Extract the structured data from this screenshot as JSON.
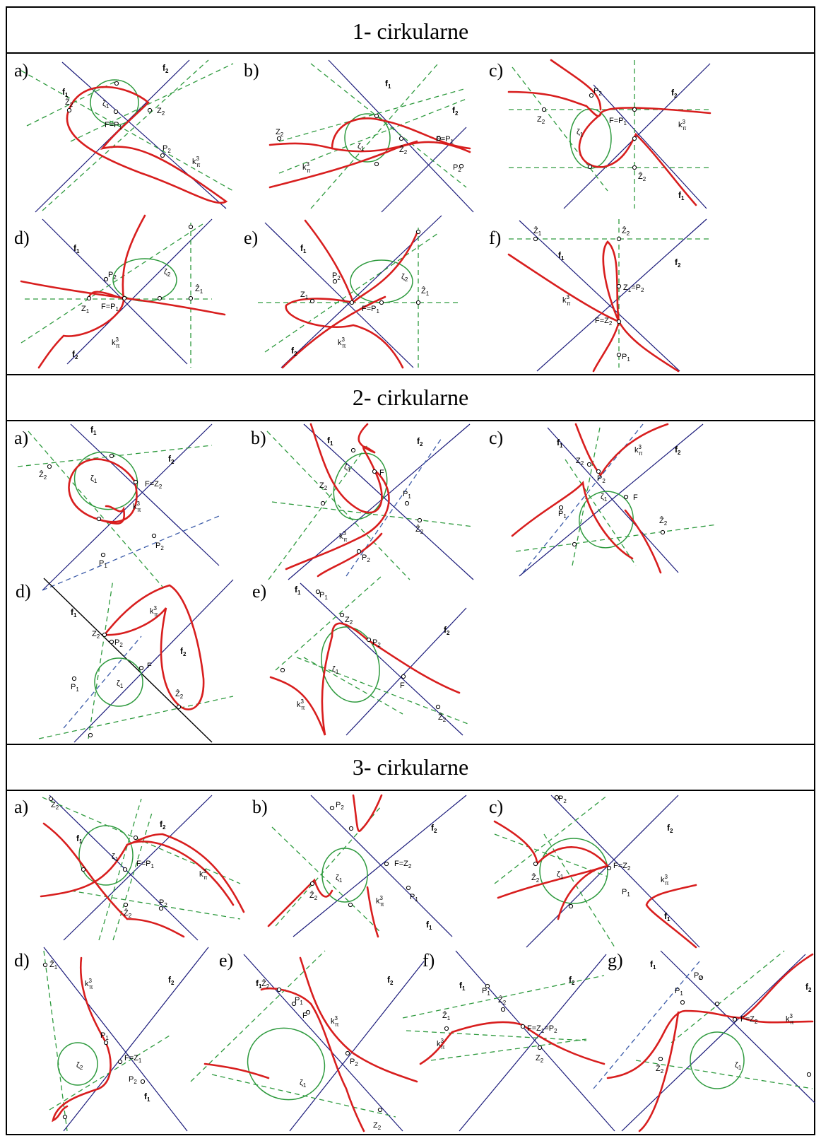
{
  "colors": {
    "frame": "#000000",
    "axis_line": "#1a1a7a",
    "construction": "#2e9a3e",
    "circle": "#2e9a3e",
    "curve": "#d81e1e",
    "blue_dashed": "#3a5aa8"
  },
  "sections": [
    {
      "title": "1- cirkularne",
      "panels": [
        {
          "letter": "a)",
          "labels": [
            "f1",
            "f2",
            "Ẑ2",
            "Z2",
            "ζ1",
            "F=P1",
            "P2",
            "k3π"
          ]
        },
        {
          "letter": "b)",
          "labels": [
            "f1",
            "f2",
            "Z2",
            "ζ1",
            "Ẑ2",
            "F=P1",
            "P2",
            "k3π"
          ]
        },
        {
          "letter": "c)",
          "labels": [
            "P2",
            "f2",
            "Z2",
            "ζ1",
            "F=P1",
            "k3π",
            "Ẑ2",
            "f1"
          ]
        },
        {
          "letter": "d)",
          "labels": [
            "f1",
            "P2",
            "ζ2",
            "Ẑ1",
            "Z1",
            "F=P1",
            "k3π",
            "f2"
          ]
        },
        {
          "letter": "e)",
          "labels": [
            "f1",
            "P2",
            "ζ2",
            "Z1",
            "Ẑ1",
            "F=P1",
            "k3π",
            "f2"
          ]
        },
        {
          "letter": "f)",
          "labels": [
            "Ẑ1",
            "Ẑ2",
            "f1",
            "f2",
            "Z1=P2",
            "k3π",
            "F=Z2",
            "P1"
          ]
        }
      ]
    },
    {
      "title": "2- cirkularne",
      "panels": [
        {
          "letter": "a)",
          "labels": [
            "f1",
            "Ẑ2",
            "f2",
            "ζ1",
            "F=Z2",
            "k3π",
            "P2",
            "P1"
          ]
        },
        {
          "letter": "b)",
          "labels": [
            "f1",
            "f2",
            "ζ1",
            "Z2",
            "F",
            "P1",
            "Ẑ2",
            "k3π",
            "P2"
          ]
        },
        {
          "letter": "c)",
          "labels": [
            "k3π",
            "f1",
            "f2",
            "Z2",
            "P2",
            "ζ1",
            "F",
            "P1",
            "Ẑ2"
          ]
        },
        {
          "letter": "d)",
          "labels": [
            "f1",
            "k3π",
            "f2",
            "Z2",
            "P2",
            "ζ1",
            "F",
            "P1",
            "Ẑ2"
          ]
        },
        {
          "letter": "e)",
          "labels": [
            "f1",
            "P1",
            "Z2",
            "f2",
            "P2",
            "ζ1",
            "F",
            "Ẑ2",
            "k3π"
          ]
        }
      ]
    },
    {
      "title": "3- cirkularne",
      "panels": [
        {
          "letter": "a)",
          "labels": [
            "Z2",
            "f1",
            "f2",
            "ζ1",
            "F=P1",
            "k3π",
            "P2",
            "Ẑ2"
          ]
        },
        {
          "letter": "b)",
          "labels": [
            "P2",
            "f2",
            "ζ1",
            "F=Z2",
            "Ẑ2",
            "P1",
            "k3π",
            "f1"
          ]
        },
        {
          "letter": "c)",
          "labels": [
            "P2",
            "f2",
            "F=Z2",
            "Ẑ2",
            "ζ1",
            "k3π",
            "P1",
            "f1"
          ]
        },
        {
          "letter": "d)",
          "labels": [
            "Ẑ1",
            "k3π",
            "f2",
            "ζ2",
            "P1",
            "F=Z1",
            "P2",
            "f1"
          ]
        },
        {
          "letter": "e)",
          "labels": [
            "f1",
            "f2",
            "Ẑ2",
            "P1",
            "F",
            "k3π",
            "P2",
            "ζ1",
            "Z2"
          ]
        },
        {
          "letter": "f)",
          "labels": [
            "f1",
            "f2",
            "P1",
            "Ẑ2",
            "Ẑ1",
            "F=Z1=P2",
            "k3π",
            "Z2"
          ]
        },
        {
          "letter": "g)",
          "labels": [
            "f1",
            "P2",
            "P1",
            "f2",
            "F=Z2",
            "k3π",
            "Ẑ2",
            "ζ1"
          ]
        }
      ]
    }
  ]
}
